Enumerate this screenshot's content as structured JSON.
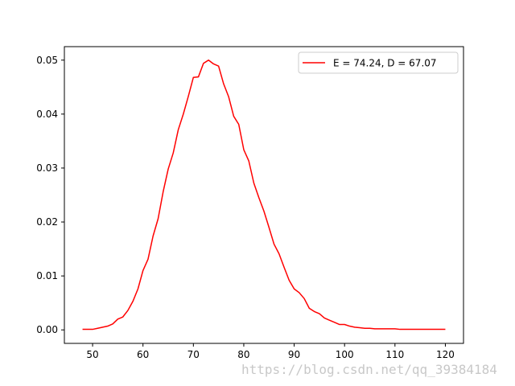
{
  "chart_data": {
    "type": "line",
    "xlim": [
      44.4,
      123.6
    ],
    "ylim": [
      -0.0025,
      0.0525
    ],
    "xticks": [
      50,
      60,
      70,
      80,
      90,
      100,
      110,
      120
    ],
    "yticks": [
      0.0,
      0.01,
      0.02,
      0.03,
      0.04,
      0.05
    ],
    "ytick_labels": [
      "0.00",
      "0.01",
      "0.02",
      "0.03",
      "0.04",
      "0.05"
    ],
    "grid": false,
    "legend_position": "top-right",
    "series": [
      {
        "name": "E = 74.24, D = 67.07",
        "color": "#ff0000",
        "x": [
          48,
          49,
          50,
          51,
          52,
          53,
          54,
          55,
          56,
          57,
          58,
          59,
          60,
          61,
          62,
          63,
          64,
          65,
          66,
          67,
          68,
          69,
          70,
          71,
          72,
          73,
          74,
          75,
          76,
          77,
          78,
          79,
          80,
          81,
          82,
          83,
          84,
          85,
          86,
          87,
          88,
          89,
          90,
          91,
          92,
          93,
          94,
          95,
          96,
          97,
          98,
          99,
          100,
          101,
          102,
          103,
          104,
          105,
          106,
          107,
          108,
          109,
          110,
          111,
          112,
          113,
          114,
          115,
          116,
          117,
          118,
          119,
          120
        ],
        "y": [
          0.0001,
          0.0001,
          0.0001,
          0.0003,
          0.0005,
          0.0007,
          0.0011,
          0.002,
          0.0024,
          0.0036,
          0.0053,
          0.0076,
          0.011,
          0.0131,
          0.0174,
          0.0206,
          0.0256,
          0.0298,
          0.0328,
          0.0371,
          0.04,
          0.0433,
          0.0468,
          0.0469,
          0.0494,
          0.05,
          0.0493,
          0.0489,
          0.0456,
          0.0432,
          0.0396,
          0.0381,
          0.0334,
          0.0313,
          0.0272,
          0.0245,
          0.022,
          0.019,
          0.0159,
          0.0141,
          0.0116,
          0.0092,
          0.0076,
          0.0069,
          0.0058,
          0.004,
          0.0034,
          0.003,
          0.0022,
          0.0018,
          0.0014,
          0.001,
          0.001,
          0.0007,
          0.0005,
          0.0004,
          0.0003,
          0.0003,
          0.0002,
          0.0002,
          0.0002,
          0.0002,
          0.0002,
          0.0001,
          0.0001,
          0.0001,
          0.0001,
          0.0001,
          0.0001,
          0.0001,
          0.0001,
          0.0001,
          0.0001
        ]
      }
    ]
  },
  "watermark": "https://blog.csdn.net/qq_39384184"
}
